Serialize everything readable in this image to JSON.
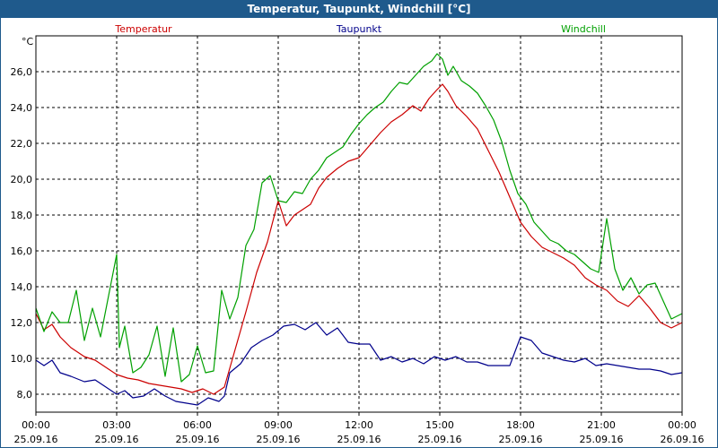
{
  "window": {
    "title": "Temperatur, Taupunkt, Windchill [°C]"
  },
  "chart_data": {
    "type": "line",
    "title": "Temperatur, Taupunkt, Windchill [°C]",
    "ylabel": "°C",
    "ylim": [
      7.0,
      28.0
    ],
    "xlim": [
      0,
      24
    ],
    "grid": true,
    "grid_style": "dashed",
    "y_ticks": [
      "8,0",
      "10,0",
      "12,0",
      "14,0",
      "16,0",
      "18,0",
      "20,0",
      "22,0",
      "24,0",
      "26,0"
    ],
    "y_tick_values": [
      8,
      10,
      12,
      14,
      16,
      18,
      20,
      22,
      24,
      26
    ],
    "x_ticks": [
      {
        "time": "00:00",
        "date": "25.09.16"
      },
      {
        "time": "03:00",
        "date": "25.09.16"
      },
      {
        "time": "06:00",
        "date": "25.09.16"
      },
      {
        "time": "09:00",
        "date": "25.09.16"
      },
      {
        "time": "12:00",
        "date": "25.09.16"
      },
      {
        "time": "15:00",
        "date": "25.09.16"
      },
      {
        "time": "18:00",
        "date": "25.09.16"
      },
      {
        "time": "21:00",
        "date": "25.09.16"
      },
      {
        "time": "00:00",
        "date": "26.09.16"
      }
    ],
    "x_tick_values": [
      0,
      3,
      6,
      9,
      12,
      15,
      18,
      21,
      24
    ],
    "legend_placement": "top",
    "series": [
      {
        "name": "Temperatur",
        "color": "#cc0000",
        "legend_anchor": "left",
        "x": [
          0,
          0.3,
          0.6,
          0.9,
          1.3,
          1.8,
          2.2,
          2.6,
          3.0,
          3.4,
          3.8,
          4.2,
          4.6,
          5.0,
          5.4,
          5.8,
          6.2,
          6.6,
          7.0,
          7.4,
          7.8,
          8.2,
          8.6,
          9.0,
          9.3,
          9.6,
          9.9,
          10.2,
          10.5,
          10.8,
          11.2,
          11.6,
          12.0,
          12.4,
          12.8,
          13.2,
          13.6,
          14.0,
          14.3,
          14.6,
          14.9,
          15.1,
          15.3,
          15.6,
          16.0,
          16.4,
          16.8,
          17.2,
          17.6,
          18.0,
          18.4,
          18.8,
          19.2,
          19.6,
          20.0,
          20.4,
          20.8,
          21.2,
          21.6,
          22.0,
          22.4,
          22.8,
          23.2,
          23.6,
          24.0
        ],
        "values": [
          12.5,
          11.6,
          11.9,
          11.2,
          10.6,
          10.1,
          9.9,
          9.5,
          9.1,
          8.9,
          8.8,
          8.6,
          8.5,
          8.4,
          8.3,
          8.1,
          8.3,
          8.0,
          8.4,
          10.5,
          12.6,
          14.8,
          16.5,
          18.8,
          17.4,
          18.0,
          18.3,
          18.6,
          19.5,
          20.1,
          20.6,
          21.0,
          21.2,
          21.9,
          22.6,
          23.2,
          23.6,
          24.1,
          23.8,
          24.5,
          25.0,
          25.3,
          24.9,
          24.1,
          23.5,
          22.8,
          21.6,
          20.4,
          19.0,
          17.6,
          16.8,
          16.2,
          15.9,
          15.6,
          15.2,
          14.5,
          14.1,
          13.8,
          13.2,
          12.9,
          13.5,
          12.8,
          12.0,
          11.7,
          12.0
        ]
      },
      {
        "name": "Taupunkt",
        "color": "#00008b",
        "legend_anchor": "middle",
        "x": [
          0,
          0.3,
          0.6,
          0.9,
          1.3,
          1.8,
          2.2,
          2.6,
          3.0,
          3.3,
          3.6,
          4.0,
          4.4,
          4.8,
          5.2,
          5.6,
          6.0,
          6.4,
          6.8,
          7.0,
          7.2,
          7.6,
          8.0,
          8.4,
          8.8,
          9.2,
          9.6,
          10.0,
          10.4,
          10.8,
          11.2,
          11.6,
          12.0,
          12.4,
          12.8,
          13.2,
          13.6,
          14.0,
          14.4,
          14.8,
          15.2,
          15.6,
          16.0,
          16.4,
          16.8,
          17.2,
          17.6,
          18.0,
          18.4,
          18.8,
          19.2,
          19.6,
          20.0,
          20.4,
          20.8,
          21.2,
          21.6,
          22.0,
          22.4,
          22.8,
          23.2,
          23.6,
          24.0
        ],
        "values": [
          9.9,
          9.6,
          9.9,
          9.2,
          9.0,
          8.7,
          8.8,
          8.4,
          8.0,
          8.2,
          7.8,
          7.9,
          8.3,
          7.9,
          7.6,
          7.5,
          7.4,
          7.8,
          7.6,
          7.9,
          9.2,
          9.7,
          10.6,
          11.0,
          11.3,
          11.8,
          11.9,
          11.6,
          12.0,
          11.3,
          11.7,
          10.9,
          10.8,
          10.8,
          9.9,
          10.1,
          9.8,
          10.0,
          9.7,
          10.1,
          9.9,
          10.1,
          9.8,
          9.8,
          9.6,
          9.6,
          9.6,
          11.2,
          11.0,
          10.3,
          10.1,
          9.9,
          9.8,
          10.0,
          9.6,
          9.7,
          9.6,
          9.5,
          9.4,
          9.4,
          9.3,
          9.1,
          9.2
        ]
      },
      {
        "name": "Windchill",
        "color": "#00a000",
        "legend_anchor": "right",
        "x": [
          0,
          0.3,
          0.6,
          0.9,
          1.2,
          1.5,
          1.8,
          2.1,
          2.4,
          2.7,
          3.0,
          3.1,
          3.3,
          3.6,
          3.9,
          4.2,
          4.5,
          4.8,
          5.1,
          5.4,
          5.7,
          6.0,
          6.3,
          6.6,
          6.9,
          7.2,
          7.5,
          7.8,
          8.1,
          8.4,
          8.7,
          9.0,
          9.3,
          9.6,
          9.9,
          10.2,
          10.5,
          10.8,
          11.1,
          11.4,
          11.7,
          12.0,
          12.3,
          12.6,
          12.9,
          13.2,
          13.5,
          13.8,
          14.1,
          14.4,
          14.7,
          14.9,
          15.1,
          15.3,
          15.5,
          15.8,
          16.1,
          16.4,
          16.7,
          17.0,
          17.3,
          17.6,
          17.9,
          18.2,
          18.5,
          18.8,
          19.1,
          19.4,
          19.7,
          20.0,
          20.3,
          20.6,
          20.9,
          21.2,
          21.5,
          21.8,
          22.1,
          22.4,
          22.7,
          23.0,
          23.3,
          23.6,
          24.0
        ],
        "values": [
          12.8,
          11.5,
          12.6,
          12.0,
          12.0,
          13.8,
          11.0,
          12.8,
          11.2,
          13.5,
          15.8,
          10.6,
          11.8,
          9.2,
          9.5,
          10.2,
          11.8,
          9.0,
          11.7,
          8.7,
          9.1,
          10.7,
          9.2,
          9.3,
          13.8,
          12.2,
          13.4,
          16.3,
          17.2,
          19.8,
          20.2,
          18.8,
          18.7,
          19.3,
          19.2,
          20.0,
          20.5,
          21.2,
          21.5,
          21.8,
          22.5,
          23.1,
          23.6,
          24.0,
          24.3,
          24.9,
          25.4,
          25.3,
          25.8,
          26.3,
          26.6,
          27.0,
          26.7,
          25.8,
          26.3,
          25.5,
          25.2,
          24.8,
          24.1,
          23.3,
          22.1,
          20.5,
          19.2,
          18.6,
          17.6,
          17.1,
          16.6,
          16.4,
          16.0,
          15.8,
          15.4,
          15.0,
          14.8,
          17.8,
          15.0,
          13.8,
          14.5,
          13.6,
          14.1,
          14.2,
          13.2,
          12.2,
          12.5
        ]
      }
    ]
  }
}
